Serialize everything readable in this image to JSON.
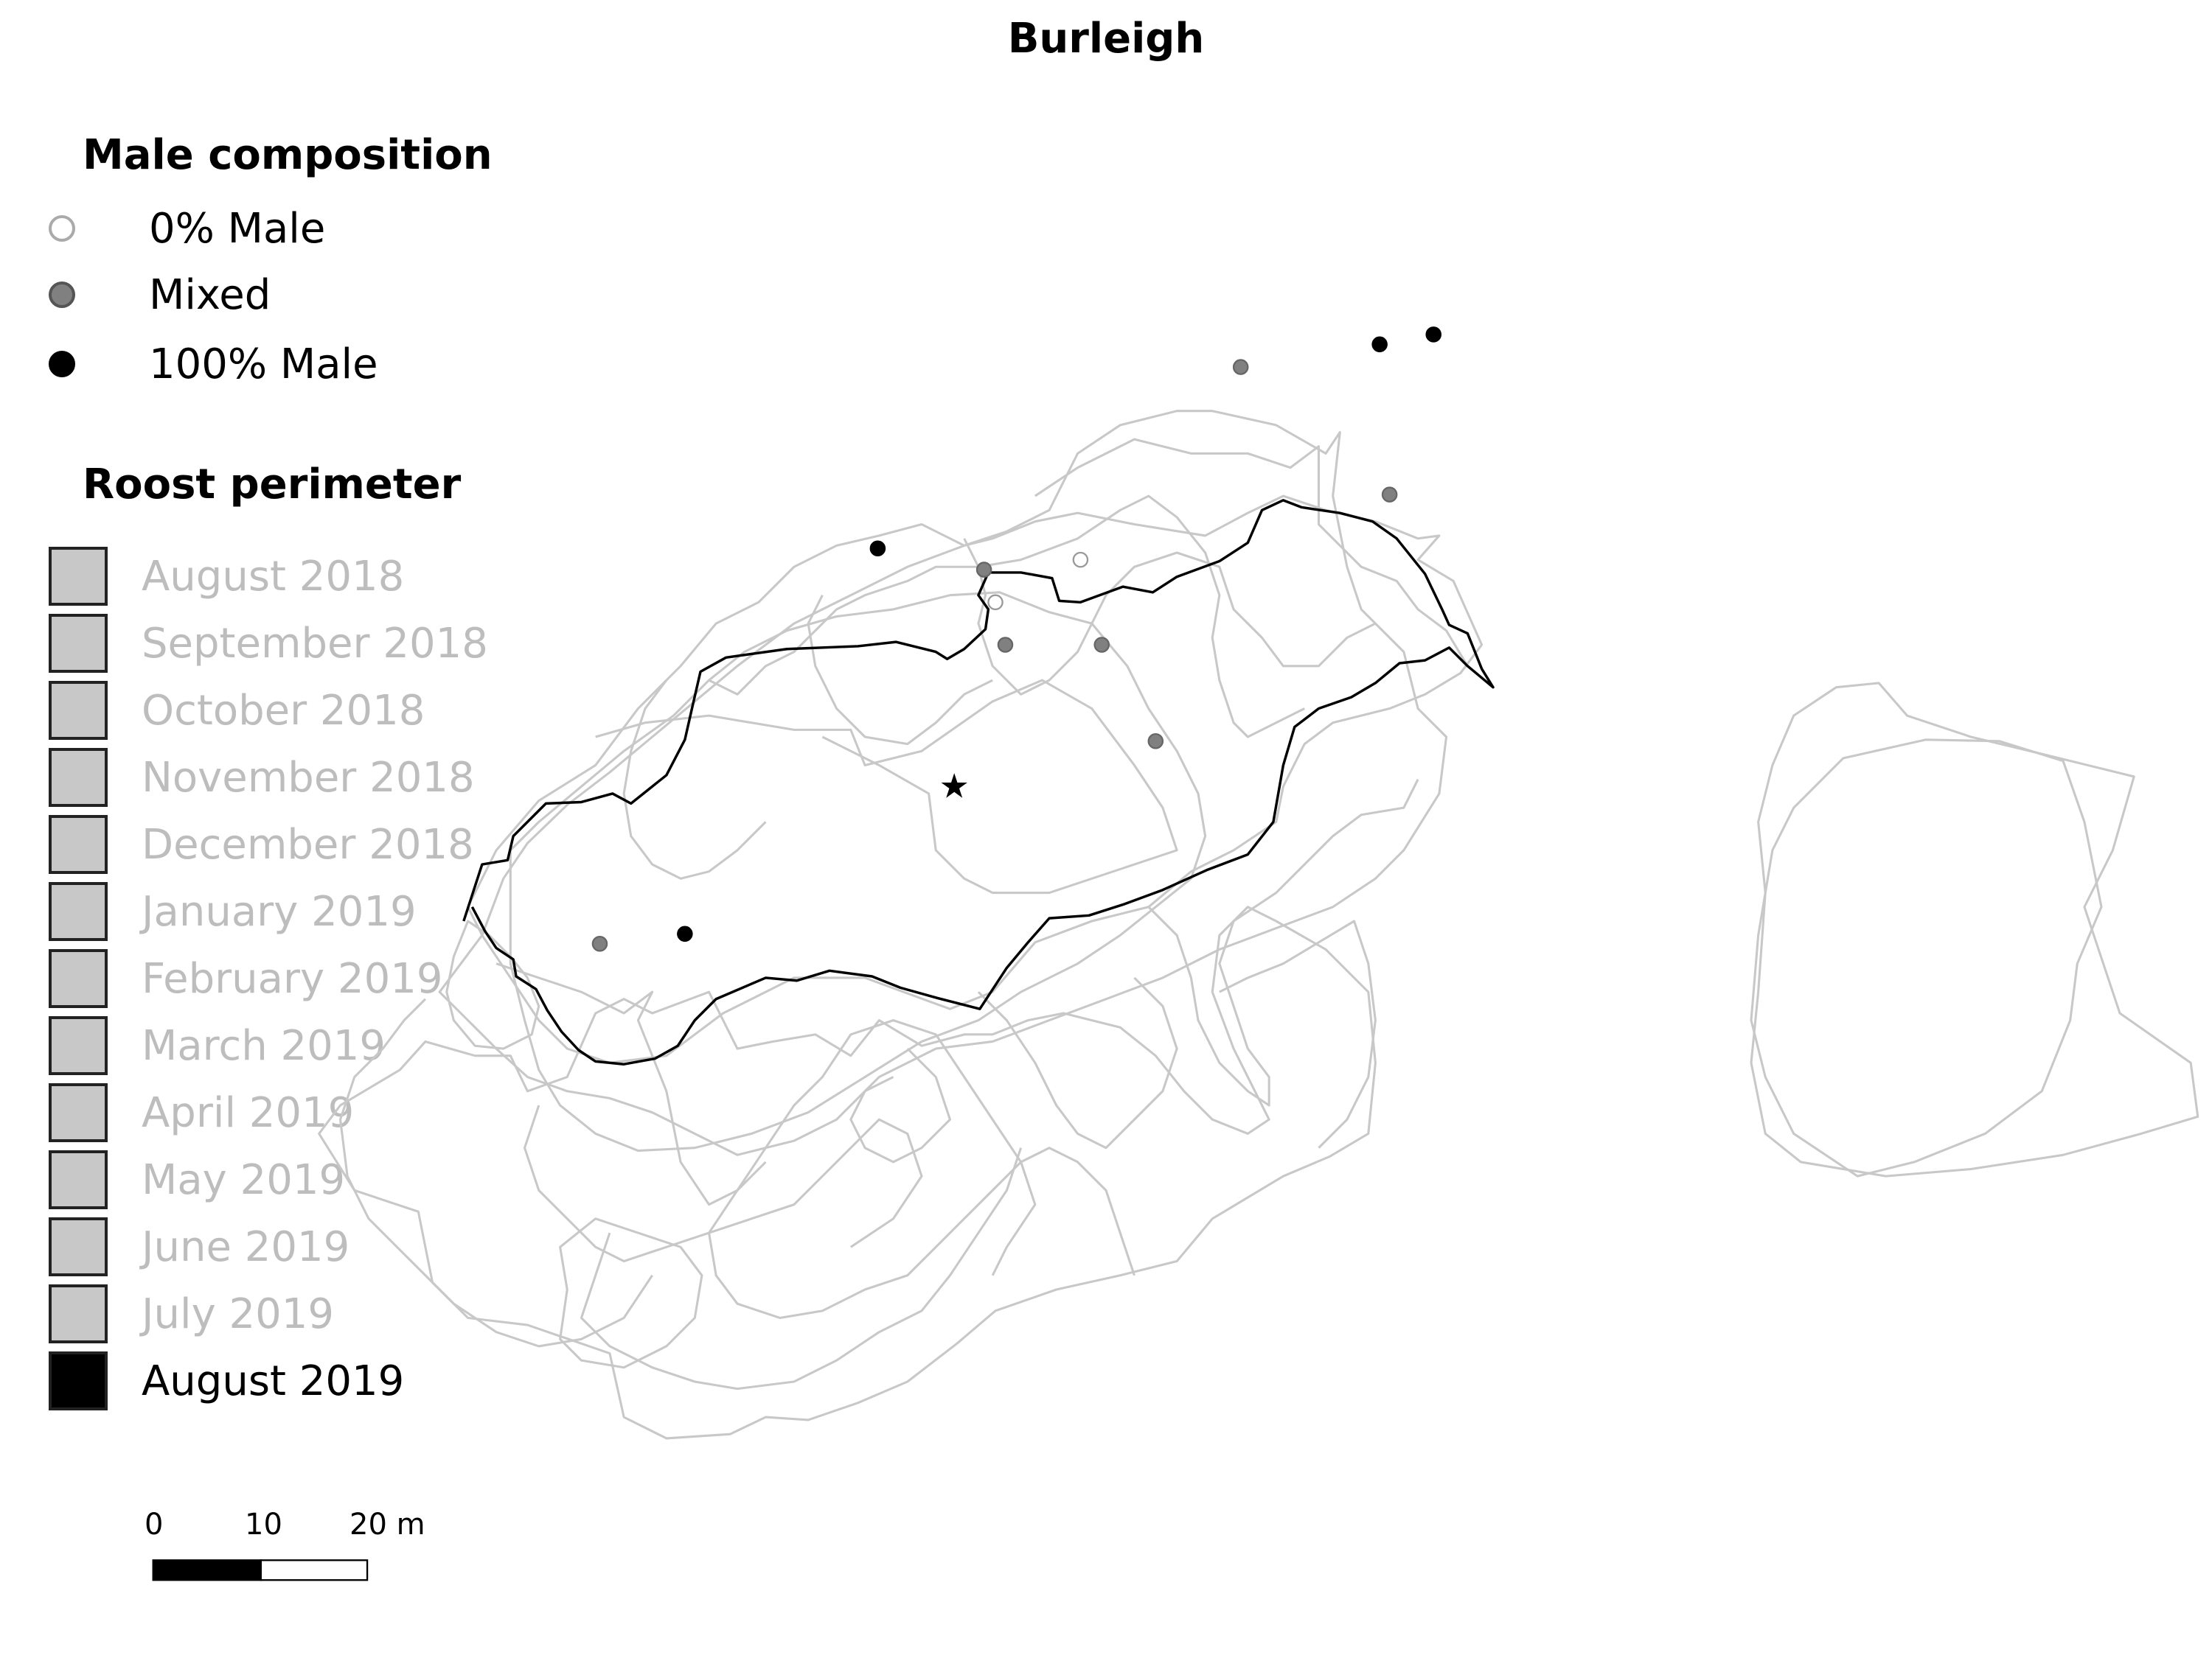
{
  "title": "Burleigh",
  "male_legend": {
    "heading": "Male composition",
    "items": [
      {
        "label": "0% Male",
        "fill": "#ffffff",
        "stroke": "#aaaaaa"
      },
      {
        "label": "Mixed",
        "fill": "#808080",
        "stroke": "#555555"
      },
      {
        "label": "100% Male",
        "fill": "#000000",
        "stroke": "#000000"
      }
    ]
  },
  "perimeter_legend": {
    "heading": "Roost perimeter",
    "items": [
      {
        "label": "August 2018",
        "color": "#c8c8c8",
        "text_color": "#bdbdbd"
      },
      {
        "label": "September 2018",
        "color": "#c8c8c8",
        "text_color": "#bdbdbd"
      },
      {
        "label": "October 2018",
        "color": "#c8c8c8",
        "text_color": "#bdbdbd"
      },
      {
        "label": "November 2018",
        "color": "#c8c8c8",
        "text_color": "#bdbdbd"
      },
      {
        "label": "December 2018",
        "color": "#c8c8c8",
        "text_color": "#bdbdbd"
      },
      {
        "label": "January 2019",
        "color": "#c8c8c8",
        "text_color": "#bdbdbd"
      },
      {
        "label": "February 2019",
        "color": "#c8c8c8",
        "text_color": "#bdbdbd"
      },
      {
        "label": "March 2019",
        "color": "#c8c8c8",
        "text_color": "#bdbdbd"
      },
      {
        "label": "April 2019",
        "color": "#c8c8c8",
        "text_color": "#bdbdbd"
      },
      {
        "label": "May 2019",
        "color": "#c8c8c8",
        "text_color": "#bdbdbd"
      },
      {
        "label": "June 2019",
        "color": "#c8c8c8",
        "text_color": "#bdbdbd"
      },
      {
        "label": "July 2019",
        "color": "#c8c8c8",
        "text_color": "#bdbdbd"
      },
      {
        "label": "August 2019",
        "color": "#000000",
        "text_color": "#000000"
      }
    ]
  },
  "scale_bar": {
    "tick_labels": [
      "0",
      "10",
      "20 m"
    ]
  },
  "colors": {
    "perimeter_grey": "#c8c8c8",
    "perimeter_current": "#000000"
  }
}
